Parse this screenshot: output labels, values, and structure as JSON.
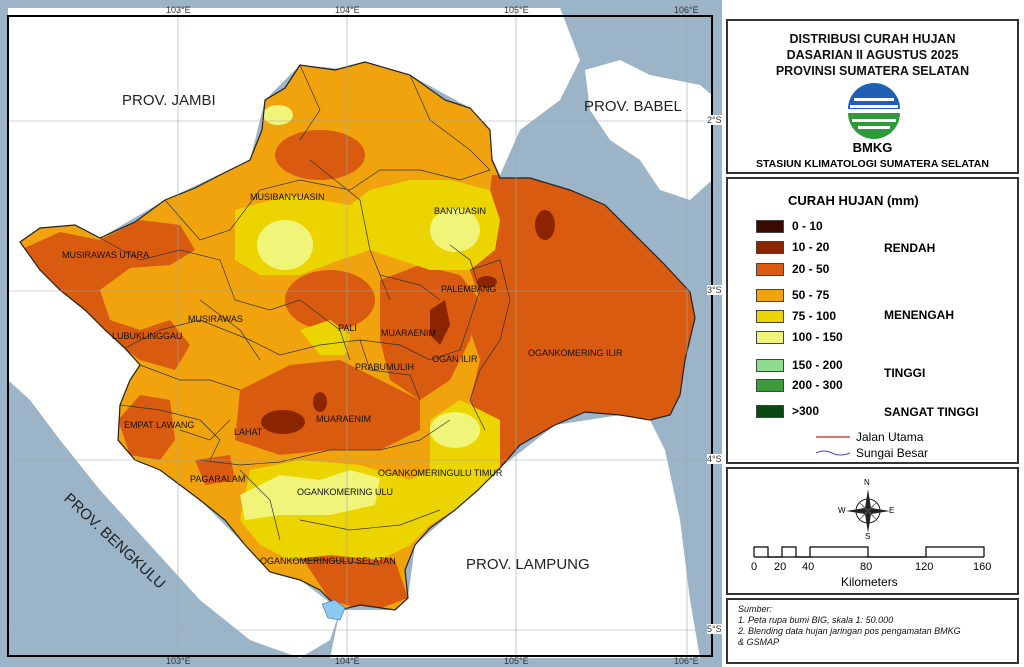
{
  "map": {
    "ticks_top": [
      "103°E",
      "104°E",
      "105°E",
      "106°E"
    ],
    "ticks_bottom": [
      "103°E",
      "104°E",
      "105°E",
      "106°E"
    ],
    "ticks_right": [
      "2°S",
      "3°S",
      "4°S",
      "5°S"
    ],
    "provinces": [
      "PROV. JAMBI",
      "PROV. BABEL",
      "PROV. BENGKULU",
      "PROV. LAMPUNG"
    ],
    "regions": [
      "MUSIBANYUASIN",
      "BANYUASIN",
      "MUSIRAWAS UTARA",
      "PALEMBANG",
      "MUSIRAWAS",
      "LUBUKLINGGAU",
      "PALI",
      "MUARAENIM",
      "OGAN ILIR",
      "OGANKOMERING ILIR",
      "PRABUMULIH",
      "EMPAT LAWANG",
      "LAHAT",
      "MUARAENIM",
      "OGANKOMERINGULU TIMUR",
      "PAGARALAM",
      "OGANKOMERING ULU",
      "OGANKOMERINGULU SELATAN"
    ]
  },
  "title": {
    "lines": [
      "DISTRIBUSI CURAH HUJAN",
      "DASARIAN II AGUSTUS 2025",
      "PROVINSI SUMATERA SELATAN"
    ],
    "logo_text": "BMKG",
    "station": "STASIUN KLIMATOLOGI SUMATERA SELATAN"
  },
  "legend": {
    "title": "CURAH HUJAN (mm)",
    "classes": [
      {
        "label": "0 - 10",
        "color": "#3a0a00"
      },
      {
        "label": "10 - 20",
        "color": "#8b2500"
      },
      {
        "label": "20 - 50",
        "color": "#d95b0f"
      },
      {
        "label": "50 - 75",
        "color": "#f0a30c"
      },
      {
        "label": "75 - 100",
        "color": "#ecd400"
      },
      {
        "label": "100 - 150",
        "color": "#f0f57a"
      },
      {
        "label": "150 - 200",
        "color": "#8fdb8f"
      },
      {
        "label": "200 - 300",
        "color": "#3c9c3c"
      },
      {
        "label": ">300",
        "color": "#0a4a12"
      }
    ],
    "categories": [
      "RENDAH",
      "MENENGAH",
      "TINGGI",
      "SANGAT TINGGI"
    ],
    "lines": [
      "Jalan Utama",
      "Sungai Besar"
    ]
  },
  "scale": {
    "labels": [
      "0",
      "20",
      "40",
      "80",
      "120",
      "160"
    ],
    "unit": "Kilometers",
    "compass": [
      "N",
      "S",
      "E",
      "W"
    ]
  },
  "source": {
    "lines": [
      "Sumber:",
      "1. Peta rupa bumi BIG, skala 1: 50.000",
      "2. Blending data hujan jaringan pos pengamatan BMKG",
      "& GSMAP"
    ]
  },
  "colors": {
    "sea": "#9bb4c8",
    "land_out": "#ffffff",
    "road": "#cc2222",
    "river": "#4444cc"
  }
}
